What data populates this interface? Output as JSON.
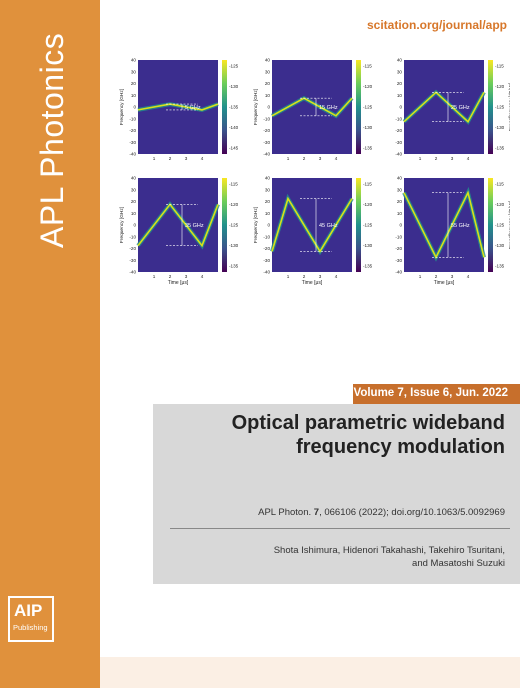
{
  "journal": {
    "name": "APL Photonics",
    "url": "scitation.org/journal/app",
    "publisher_line1": "AIP",
    "publisher_line2": "Publishing"
  },
  "issue": "Volume 7, Issue 6, Jun. 2022",
  "article": {
    "title": "Optical parametric wideband frequency modulation",
    "citation_pre": "APL Photon. ",
    "citation_vol": "7",
    "citation_post": ", 066106 (2022); doi.org/10.1063/5.0092969",
    "authors_line1": "Shota Ishimura, Hidenori Takahashi, Takehiro Tsuritani,",
    "authors_line2": "and Masatoshi Suzuki"
  },
  "colors": {
    "spine": "#e0913c",
    "accent": "#c76f2c",
    "grey_panel": "#d8d8d8",
    "plot_bg": "#3b2d8e"
  },
  "chart_data": [
    {
      "type": "heatmap",
      "panel": 1,
      "annotation": "5 GHz",
      "ylabel": "Frequency [GHz]",
      "xlabel": "",
      "ylim": [
        -40,
        40
      ],
      "yticks": [
        40,
        30,
        20,
        10,
        0,
        -10,
        -20,
        -30,
        -40
      ],
      "xlim": [
        0,
        5
      ],
      "xticks": [
        1,
        2,
        3,
        4
      ],
      "colorbar_ticks": [
        -125,
        -130,
        -135,
        -140,
        -145
      ],
      "colorbar_label": "",
      "trace": {
        "x": [
          0,
          2,
          4,
          5
        ],
        "y": [
          -2.5,
          2.5,
          -2.5,
          2.5
        ]
      }
    },
    {
      "type": "heatmap",
      "panel": 2,
      "annotation": "15 GHz",
      "ylabel": "Frequency [GHz]",
      "xlabel": "",
      "ylim": [
        -40,
        40
      ],
      "yticks": [
        40,
        30,
        20,
        10,
        0,
        -10,
        -20,
        -30,
        -40
      ],
      "xlim": [
        0,
        5
      ],
      "xticks": [
        1,
        2,
        3,
        4
      ],
      "colorbar_ticks": [
        -115,
        -120,
        -125,
        -130,
        -135
      ],
      "colorbar_label": "",
      "trace": {
        "x": [
          0,
          2,
          4,
          5
        ],
        "y": [
          -7.5,
          7.5,
          -7.5,
          7.5
        ]
      }
    },
    {
      "type": "heatmap",
      "panel": 3,
      "annotation": "25 GHz",
      "ylabel": "",
      "xlabel": "",
      "ylim": [
        -40,
        40
      ],
      "yticks": [
        40,
        30,
        20,
        10,
        0,
        -10,
        -20,
        -30,
        -40
      ],
      "xlim": [
        0,
        5
      ],
      "xticks": [
        1,
        2,
        3,
        4
      ],
      "colorbar_ticks": [
        -115,
        -120,
        -125,
        -130,
        -135
      ],
      "colorbar_label": "Power/frequency [dB/Hz]",
      "trace": {
        "x": [
          0,
          2,
          4,
          5
        ],
        "y": [
          -12.5,
          12.5,
          -12.5,
          12.5
        ]
      }
    },
    {
      "type": "heatmap",
      "panel": 4,
      "annotation": "35 GHz",
      "ylabel": "Frequency [GHz]",
      "xlabel": "Time [μs]",
      "ylim": [
        -40,
        40
      ],
      "yticks": [
        40,
        30,
        20,
        10,
        0,
        -10,
        -20,
        -30,
        -40
      ],
      "xlim": [
        0,
        5
      ],
      "xticks": [
        1,
        2,
        3,
        4
      ],
      "colorbar_ticks": [
        -115,
        -120,
        -125,
        -130,
        -135
      ],
      "colorbar_label": "",
      "trace": {
        "x": [
          0,
          2,
          4,
          5
        ],
        "y": [
          -17.5,
          17.5,
          -17.5,
          17.5
        ]
      }
    },
    {
      "type": "heatmap",
      "panel": 5,
      "annotation": "45 GHz",
      "ylabel": "Frequency [GHz]",
      "xlabel": "Time [μs]",
      "ylim": [
        -40,
        40
      ],
      "yticks": [
        40,
        30,
        20,
        10,
        0,
        -10,
        -20,
        -30,
        -40
      ],
      "xlim": [
        0,
        5
      ],
      "xticks": [
        1,
        2,
        3,
        4
      ],
      "colorbar_ticks": [
        -115,
        -120,
        -125,
        -130,
        -135
      ],
      "colorbar_label": "",
      "trace": {
        "x": [
          0,
          1,
          3,
          5
        ],
        "y": [
          -22.5,
          22.5,
          -22.5,
          22.5
        ]
      }
    },
    {
      "type": "heatmap",
      "panel": 6,
      "annotation": "55 GHz",
      "ylabel": "",
      "xlabel": "Time [μs]",
      "ylim": [
        -40,
        40
      ],
      "yticks": [
        40,
        30,
        20,
        10,
        0,
        -10,
        -20,
        -30,
        -40
      ],
      "xlim": [
        0,
        5
      ],
      "xticks": [
        1,
        2,
        3,
        4
      ],
      "colorbar_ticks": [
        -115,
        -120,
        -125,
        -130,
        -135
      ],
      "colorbar_label": "Power/frequency [dB/Hz]",
      "trace": {
        "x": [
          0,
          2,
          4,
          5
        ],
        "y": [
          27.5,
          -27.5,
          27.5,
          -27.5
        ]
      }
    }
  ]
}
